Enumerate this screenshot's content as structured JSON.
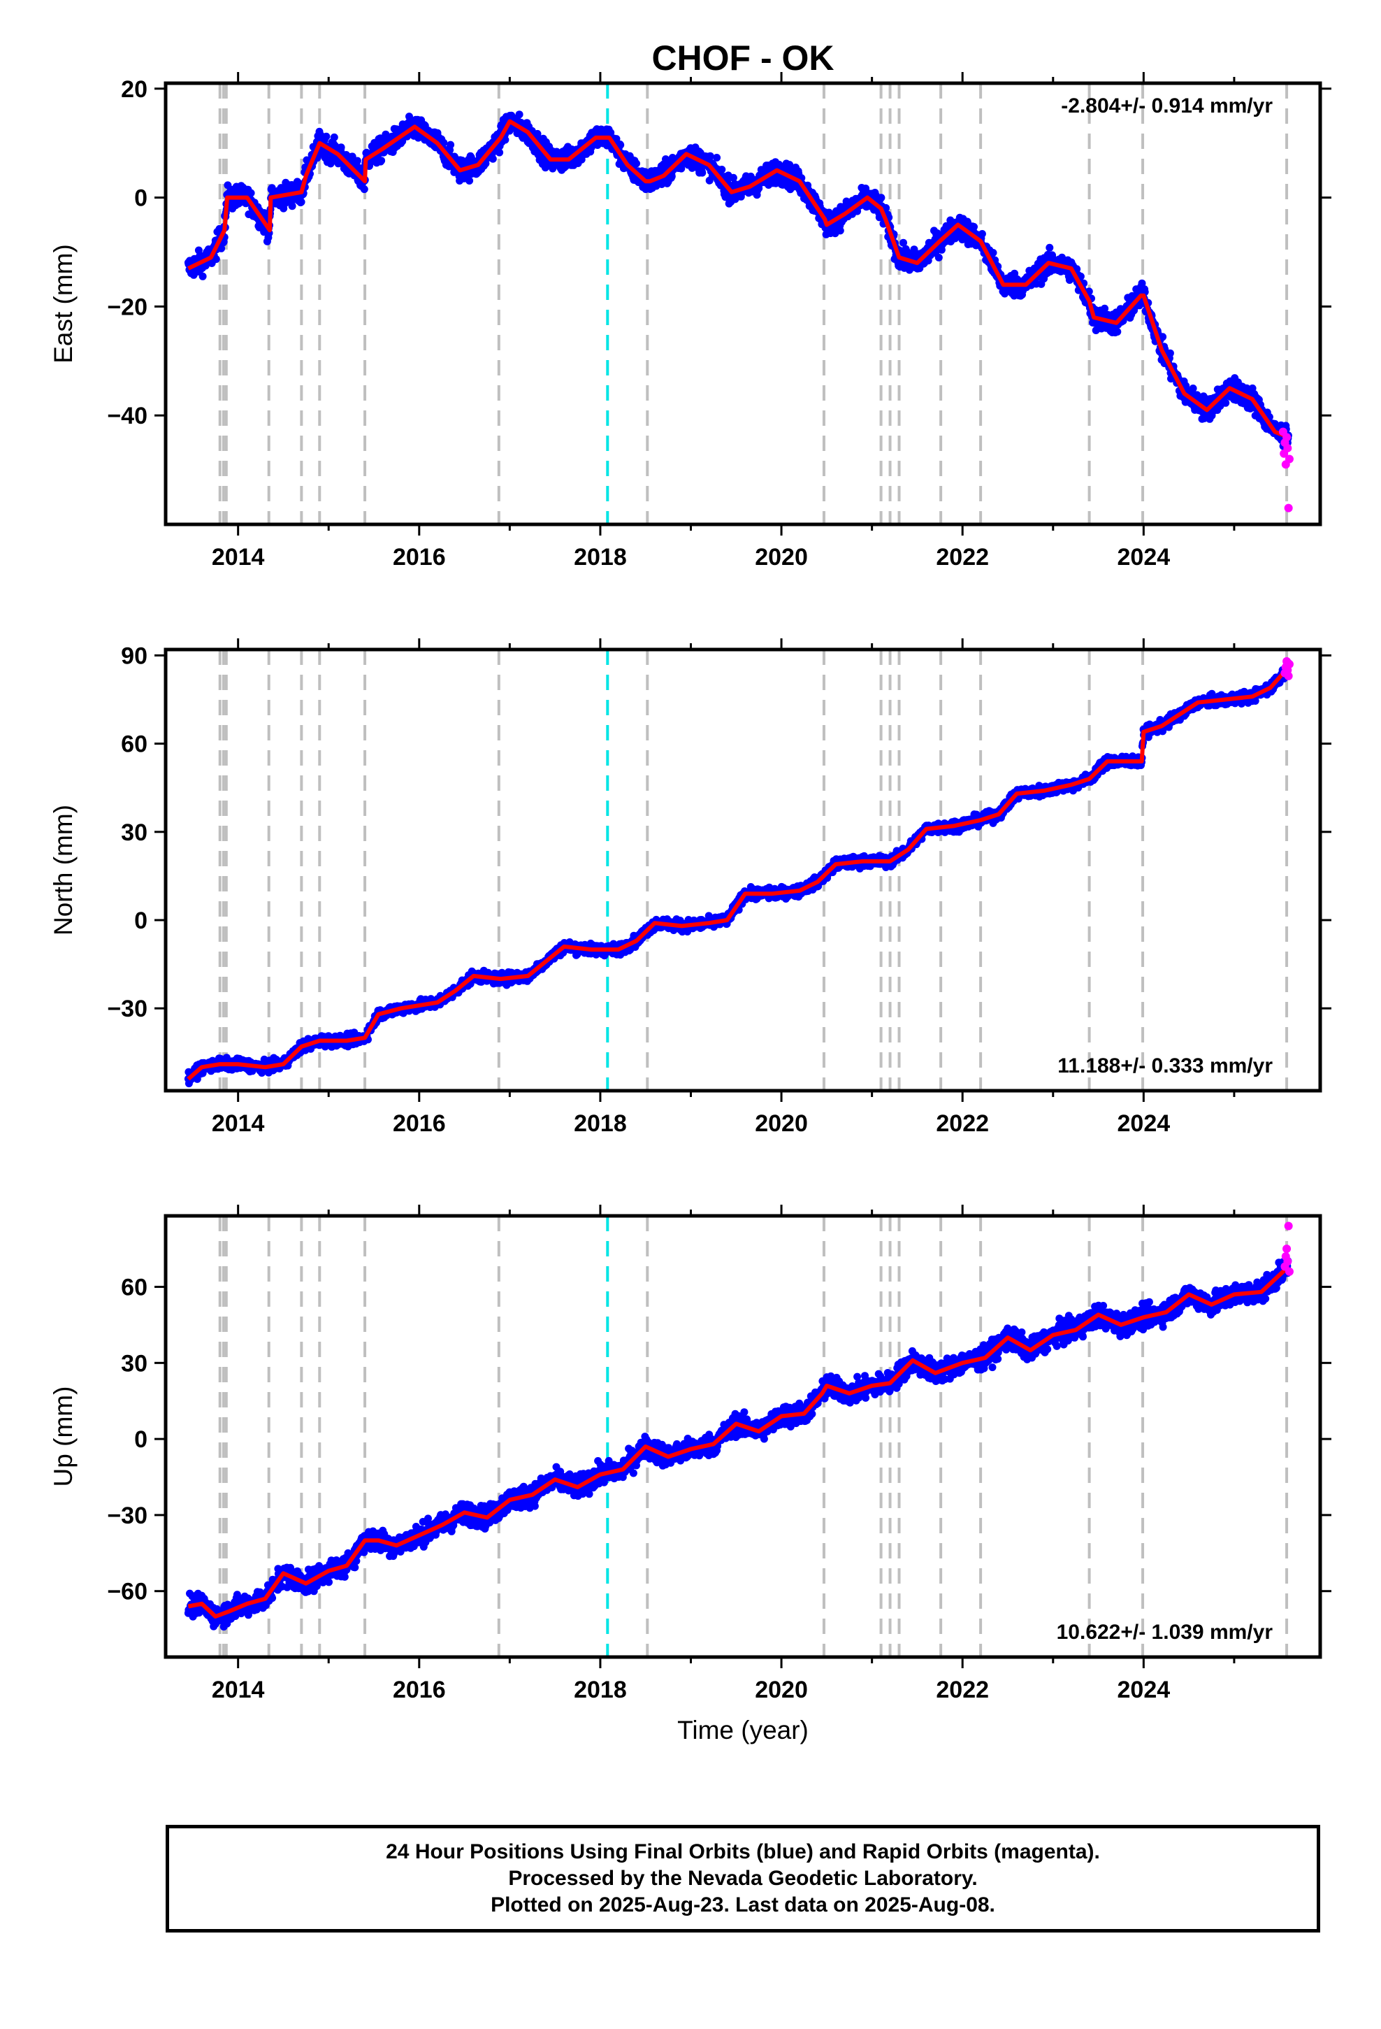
{
  "title": "CHOF - OK",
  "footer": {
    "line1": "24 Hour Positions Using Final Orbits (blue) and Rapid Orbits (magenta).",
    "line2": "Processed by the Nevada Geodetic Laboratory.",
    "line3": "Plotted on 2025-Aug-23. Last data on 2025-Aug-08."
  },
  "colors": {
    "final_orbits": "#0000ff",
    "rapid_orbits": "#ff00ff",
    "model": "#ff0000",
    "events": "#bfbfbf",
    "special_event": "#00e5e5"
  },
  "chart_data": [
    {
      "type": "scatter",
      "ylabel": "East (mm)",
      "xlabel": "",
      "xlim": [
        2013.2,
        2025.95
      ],
      "ylim": [
        -60,
        21
      ],
      "x_ticks": [
        2014,
        2016,
        2018,
        2020,
        2022,
        2024
      ],
      "y_ticks": [
        20,
        0,
        -20,
        -40
      ],
      "rate_label": "-2.804+/- 0.914 mm/yr",
      "rate_position": "top-right",
      "model_curve": {
        "x": [
          2013.45,
          2013.7,
          2013.85,
          2013.88,
          2014.1,
          2014.35,
          2014.36,
          2014.7,
          2014.75,
          2014.9,
          2015.1,
          2015.4,
          2015.41,
          2015.6,
          2015.95,
          2016.2,
          2016.45,
          2016.65,
          2016.9,
          2017.0,
          2017.2,
          2017.45,
          2017.65,
          2017.95,
          2018.1,
          2018.3,
          2018.5,
          2018.55,
          2018.7,
          2018.95,
          2019.2,
          2019.45,
          2019.65,
          2019.95,
          2020.2,
          2020.48,
          2020.5,
          2020.7,
          2020.95,
          2021.1,
          2021.15,
          2021.3,
          2021.5,
          2021.75,
          2021.95,
          2022.2,
          2022.45,
          2022.7,
          2022.95,
          2023.2,
          2023.4,
          2023.45,
          2023.7,
          2023.97,
          2024.0,
          2024.2,
          2024.45,
          2024.7,
          2024.95,
          2025.2,
          2025.45,
          2025.6
        ],
        "y": [
          -13,
          -11,
          -6,
          0,
          0,
          -6,
          0,
          1,
          4,
          10,
          8,
          3,
          7,
          9,
          13,
          10,
          5,
          6,
          11,
          14,
          12,
          7,
          7,
          11,
          11,
          6,
          3,
          3,
          4,
          8,
          6,
          1,
          2,
          5,
          3,
          -4,
          -5,
          -3,
          0,
          -2,
          -4,
          -11,
          -12,
          -8,
          -5,
          -8,
          -16,
          -16,
          -12,
          -13,
          -19,
          -22,
          -23,
          -18,
          -18,
          -28,
          -36,
          -39,
          -35,
          -37,
          -43,
          -44
        ]
      },
      "rapid_points": {
        "x": [
          2025.54,
          2025.55,
          2025.56,
          2025.57,
          2025.58,
          2025.59,
          2025.6,
          2025.61
        ],
        "y": [
          -43,
          -47,
          -45,
          -49,
          -44,
          -46,
          -57,
          -48
        ]
      },
      "events": [
        2013.8,
        2013.84,
        2013.87,
        2014.34,
        2014.7,
        2014.9,
        2015.4,
        2016.88,
        2018.52,
        2020.47,
        2021.1,
        2021.2,
        2021.3,
        2021.76,
        2022.2,
        2023.4,
        2023.99,
        2025.58
      ],
      "special_event": 2018.08
    },
    {
      "type": "scatter",
      "ylabel": "North (mm)",
      "xlabel": "",
      "xlim": [
        2013.2,
        2025.95
      ],
      "ylim": [
        -58,
        92
      ],
      "x_ticks": [
        2014,
        2016,
        2018,
        2020,
        2022,
        2024
      ],
      "y_ticks": [
        90,
        60,
        30,
        0,
        -30
      ],
      "rate_label": "11.188+/- 0.333 mm/yr",
      "rate_position": "bottom-right",
      "model_curve": {
        "x": [
          2013.45,
          2013.6,
          2013.8,
          2014.0,
          2014.3,
          2014.5,
          2014.7,
          2014.9,
          2015.2,
          2015.4,
          2015.55,
          2015.8,
          2016.2,
          2016.4,
          2016.6,
          2016.9,
          2017.2,
          2017.4,
          2017.6,
          2017.9,
          2018.2,
          2018.4,
          2018.6,
          2018.9,
          2019.2,
          2019.4,
          2019.6,
          2019.9,
          2020.2,
          2020.4,
          2020.6,
          2020.9,
          2021.2,
          2021.4,
          2021.6,
          2021.9,
          2022.2,
          2022.4,
          2022.6,
          2022.9,
          2023.2,
          2023.4,
          2023.6,
          2023.98,
          2024.0,
          2024.2,
          2024.4,
          2024.6,
          2024.9,
          2025.2,
          2025.4,
          2025.6
        ],
        "y": [
          -54,
          -50,
          -49,
          -49,
          -50,
          -49,
          -43,
          -41,
          -41,
          -40,
          -32,
          -30,
          -28,
          -24,
          -19,
          -20,
          -19,
          -14,
          -9,
          -10,
          -10,
          -7,
          -1,
          -2,
          -1,
          0,
          9,
          9,
          10,
          13,
          19,
          20,
          20,
          24,
          31,
          32,
          34,
          36,
          43,
          44,
          46,
          48,
          54,
          54,
          64,
          66,
          70,
          74,
          75,
          76,
          79,
          86
        ]
      },
      "rapid_points": {
        "x": [
          2025.56,
          2025.57,
          2025.58,
          2025.59,
          2025.6,
          2025.61
        ],
        "y": [
          84,
          86,
          88,
          85,
          83,
          87
        ]
      },
      "events": [
        2013.8,
        2013.84,
        2013.87,
        2014.34,
        2014.7,
        2014.9,
        2015.4,
        2016.88,
        2018.52,
        2020.47,
        2021.1,
        2021.2,
        2021.3,
        2021.76,
        2022.2,
        2023.4,
        2023.99,
        2025.58
      ],
      "special_event": 2018.08
    },
    {
      "type": "scatter",
      "ylabel": "Up (mm)",
      "xlabel": "Time (year)",
      "xlim": [
        2013.2,
        2025.95
      ],
      "ylim": [
        -86,
        88
      ],
      "x_ticks": [
        2014,
        2016,
        2018,
        2020,
        2022,
        2024
      ],
      "y_ticks": [
        60,
        30,
        0,
        -30,
        -60
      ],
      "rate_label": "10.622+/- 1.039 mm/yr",
      "rate_position": "bottom-right",
      "model_curve": {
        "x": [
          2013.45,
          2013.6,
          2013.75,
          2013.9,
          2014.1,
          2014.3,
          2014.5,
          2014.75,
          2015.0,
          2015.2,
          2015.4,
          2015.55,
          2015.75,
          2016.0,
          2016.25,
          2016.5,
          2016.75,
          2017.0,
          2017.25,
          2017.5,
          2017.75,
          2018.0,
          2018.25,
          2018.5,
          2018.75,
          2019.0,
          2019.25,
          2019.5,
          2019.75,
          2020.0,
          2020.25,
          2020.45,
          2020.5,
          2020.75,
          2021.0,
          2021.2,
          2021.45,
          2021.7,
          2022.0,
          2022.25,
          2022.5,
          2022.75,
          2023.0,
          2023.25,
          2023.5,
          2023.75,
          2024.0,
          2024.25,
          2024.5,
          2024.75,
          2025.0,
          2025.3,
          2025.6
        ],
        "y": [
          -66,
          -65,
          -70,
          -68,
          -65,
          -63,
          -53,
          -57,
          -52,
          -50,
          -40,
          -40,
          -42,
          -38,
          -34,
          -29,
          -31,
          -24,
          -22,
          -16,
          -19,
          -14,
          -12,
          -3,
          -7,
          -4,
          -2,
          6,
          3,
          9,
          10,
          18,
          21,
          18,
          21,
          22,
          31,
          26,
          30,
          32,
          40,
          35,
          41,
          43,
          49,
          45,
          48,
          50,
          57,
          53,
          57,
          58,
          68
        ]
      },
      "rapid_points": {
        "x": [
          2025.56,
          2025.57,
          2025.58,
          2025.59,
          2025.6,
          2025.61
        ],
        "y": [
          68,
          72,
          75,
          70,
          84,
          66
        ]
      },
      "events": [
        2013.8,
        2013.84,
        2013.87,
        2014.34,
        2014.7,
        2014.9,
        2015.4,
        2016.88,
        2018.52,
        2020.47,
        2021.1,
        2021.2,
        2021.3,
        2021.76,
        2022.2,
        2023.4,
        2023.99,
        2025.58
      ],
      "special_event": 2018.08
    }
  ]
}
